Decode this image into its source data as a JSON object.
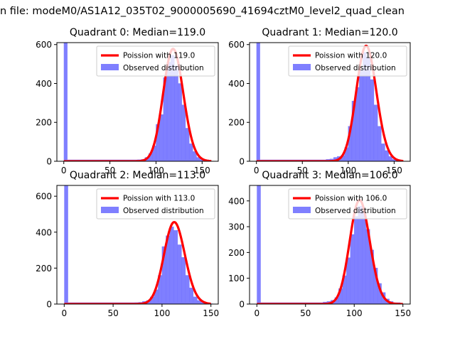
{
  "figure_title": "n file: modeM0/AS1A12_035T02_9000005690_41694cztM0_level2_quad_clean",
  "colors": {
    "poisson": "#ff0000",
    "observed": "#7f7fff",
    "observed_edge": "#6a6aff",
    "axis": "#000000"
  },
  "chart_data": [
    {
      "type": "bar",
      "title": "Quadrant 0: Median=119.0",
      "median": 119.0,
      "xticks": [
        0,
        50,
        100,
        150
      ],
      "yticks": [
        0,
        200,
        400,
        600
      ],
      "xlim": [
        -7.5,
        167.5
      ],
      "ylim": [
        0,
        610
      ],
      "bin_width": 4,
      "legend": {
        "position": "top-right",
        "labels": [
          "Poission with 119.0",
          "Observed distribution"
        ]
      },
      "zero_bin_count": 610,
      "bins": [
        [
          56,
          3
        ],
        [
          60,
          3
        ],
        [
          64,
          3
        ],
        [
          68,
          5
        ],
        [
          72,
          5
        ],
        [
          76,
          6
        ],
        [
          80,
          8
        ],
        [
          84,
          10
        ],
        [
          88,
          20
        ],
        [
          92,
          40
        ],
        [
          96,
          80
        ],
        [
          100,
          190
        ],
        [
          104,
          240
        ],
        [
          108,
          430
        ],
        [
          112,
          510
        ],
        [
          116,
          545
        ],
        [
          120,
          490
        ],
        [
          124,
          400
        ],
        [
          128,
          290
        ],
        [
          132,
          170
        ],
        [
          136,
          90
        ],
        [
          140,
          50
        ],
        [
          144,
          20
        ],
        [
          148,
          8
        ],
        [
          152,
          4
        ],
        [
          156,
          2
        ],
        [
          160,
          1
        ]
      ]
    },
    {
      "type": "bar",
      "title": "Quadrant 1: Median=120.0",
      "median": 120.0,
      "xticks": [
        0,
        50,
        100,
        150
      ],
      "yticks": [
        0,
        200,
        400,
        600
      ],
      "xlim": [
        -7.5,
        167.5
      ],
      "ylim": [
        0,
        610
      ],
      "bin_width": 4,
      "legend": {
        "position": "top-right",
        "labels": [
          "Poission with 120.0",
          "Observed distribution"
        ]
      },
      "zero_bin_count": 610,
      "bins": [
        [
          68,
          3
        ],
        [
          72,
          5
        ],
        [
          76,
          10
        ],
        [
          80,
          12
        ],
        [
          84,
          20
        ],
        [
          88,
          25
        ],
        [
          92,
          30
        ],
        [
          96,
          70
        ],
        [
          100,
          180
        ],
        [
          104,
          310
        ],
        [
          108,
          380
        ],
        [
          112,
          470
        ],
        [
          116,
          560
        ],
        [
          120,
          530
        ],
        [
          124,
          420
        ],
        [
          128,
          290
        ],
        [
          132,
          180
        ],
        [
          136,
          90
        ],
        [
          140,
          55
        ],
        [
          144,
          25
        ],
        [
          148,
          10
        ],
        [
          152,
          4
        ],
        [
          156,
          2
        ],
        [
          160,
          1
        ]
      ]
    },
    {
      "type": "bar",
      "title": "Quadrant 2: Median=113.0",
      "median": 113.0,
      "xticks": [
        0,
        50,
        100,
        150
      ],
      "yticks": [
        0,
        200,
        400,
        600
      ],
      "xlim": [
        -7.5,
        157.5
      ],
      "ylim": [
        0,
        660
      ],
      "bin_width": 4,
      "legend": {
        "position": "top-right",
        "labels": [
          "Poission with 113.0",
          "Observed distribution"
        ]
      },
      "zero_bin_count": 660,
      "bins": [
        [
          60,
          2
        ],
        [
          64,
          3
        ],
        [
          68,
          5
        ],
        [
          72,
          8
        ],
        [
          76,
          10
        ],
        [
          80,
          15
        ],
        [
          84,
          20
        ],
        [
          88,
          40
        ],
        [
          92,
          80
        ],
        [
          96,
          160
        ],
        [
          100,
          320
        ],
        [
          104,
          380
        ],
        [
          108,
          430
        ],
        [
          112,
          410
        ],
        [
          116,
          330
        ],
        [
          120,
          260
        ],
        [
          124,
          160
        ],
        [
          128,
          90
        ],
        [
          132,
          40
        ],
        [
          136,
          20
        ],
        [
          140,
          10
        ],
        [
          144,
          4
        ],
        [
          148,
          2
        ]
      ]
    },
    {
      "type": "bar",
      "title": "Quadrant 3: Median=106.0",
      "median": 106.0,
      "xticks": [
        0,
        50,
        100,
        150
      ],
      "yticks": [
        0,
        100,
        200,
        300,
        400
      ],
      "xlim": [
        -7.5,
        157.5
      ],
      "ylim": [
        0,
        460
      ],
      "bin_width": 4,
      "legend": {
        "position": "top-right",
        "labels": [
          "Poission with 106.0",
          "Observed distribution"
        ]
      },
      "zero_bin_count": 460,
      "bins": [
        [
          52,
          2
        ],
        [
          56,
          2
        ],
        [
          60,
          3
        ],
        [
          64,
          5
        ],
        [
          68,
          8
        ],
        [
          72,
          10
        ],
        [
          76,
          15
        ],
        [
          80,
          25
        ],
        [
          84,
          60
        ],
        [
          88,
          110
        ],
        [
          92,
          180
        ],
        [
          96,
          270
        ],
        [
          100,
          340
        ],
        [
          104,
          380
        ],
        [
          108,
          360
        ],
        [
          112,
          290
        ],
        [
          116,
          210
        ],
        [
          120,
          140
        ],
        [
          124,
          80
        ],
        [
          128,
          45
        ],
        [
          132,
          20
        ],
        [
          136,
          10
        ],
        [
          140,
          4
        ],
        [
          144,
          2
        ]
      ]
    }
  ]
}
